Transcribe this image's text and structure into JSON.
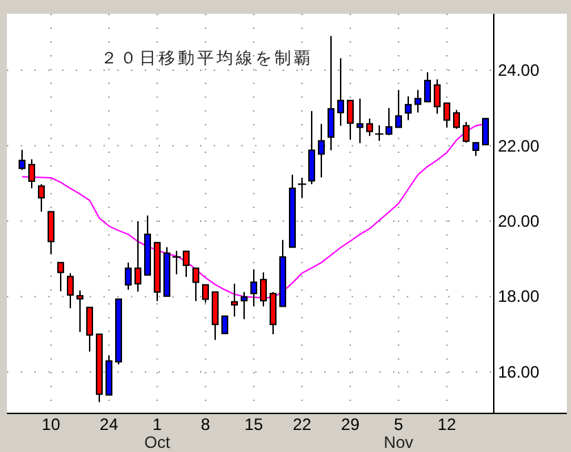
{
  "chart_data": {
    "type": "candlestick",
    "annotations": [
      "２０日移動平均線を制覇",
      "Oct",
      "Nov"
    ],
    "categories": [
      null,
      null,
      null,
      "10",
      null,
      null,
      null,
      null,
      null,
      "24",
      null,
      null,
      null,
      null,
      "1",
      null,
      null,
      null,
      null,
      "8",
      null,
      null,
      null,
      null,
      "15",
      null,
      null,
      null,
      null,
      "22",
      null,
      null,
      null,
      null,
      "29",
      null,
      null,
      null,
      null,
      "5",
      null,
      null,
      null,
      null,
      "12",
      null,
      null,
      null,
      null
    ],
    "ohlc": [
      [
        21.4,
        21.89,
        21.36,
        21.61
      ],
      [
        21.5,
        21.64,
        20.87,
        21.06
      ],
      [
        20.93,
        20.98,
        20.25,
        20.62
      ],
      [
        20.25,
        20.25,
        19.12,
        19.46
      ],
      [
        18.9,
        18.9,
        18.14,
        18.64
      ],
      [
        18.53,
        18.62,
        17.69,
        18.04
      ],
      [
        18.02,
        18.16,
        17.06,
        17.94
      ],
      [
        17.71,
        17.71,
        16.54,
        16.98
      ],
      [
        17.0,
        17.0,
        15.2,
        15.41
      ],
      [
        15.39,
        16.44,
        15.39,
        16.29
      ],
      [
        16.27,
        17.93,
        16.2,
        17.93
      ],
      [
        18.31,
        18.9,
        18.18,
        18.75
      ],
      [
        18.75,
        20.0,
        18.13,
        18.34
      ],
      [
        18.57,
        20.15,
        18.57,
        19.65
      ],
      [
        19.43,
        19.43,
        17.88,
        18.12
      ],
      [
        18.01,
        19.31,
        18.01,
        19.15
      ],
      [
        19.05,
        19.21,
        18.59,
        19.05
      ],
      [
        19.2,
        19.2,
        18.52,
        18.83
      ],
      [
        18.75,
        18.75,
        17.88,
        18.38
      ],
      [
        18.31,
        18.31,
        17.84,
        17.93
      ],
      [
        18.12,
        18.12,
        16.85,
        17.26
      ],
      [
        17.02,
        17.48,
        17.0,
        17.48
      ],
      [
        17.86,
        18.34,
        17.47,
        17.78
      ],
      [
        17.89,
        18.12,
        17.4,
        17.99
      ],
      [
        18.08,
        18.72,
        17.74,
        18.38
      ],
      [
        18.45,
        18.64,
        17.74,
        17.89
      ],
      [
        18.08,
        18.12,
        17.0,
        17.26
      ],
      [
        17.74,
        19.5,
        17.74,
        19.05
      ],
      [
        19.31,
        21.23,
        19.31,
        20.87
      ],
      [
        20.98,
        21.15,
        20.61,
        20.98
      ],
      [
        21.07,
        22.92,
        20.98,
        21.88
      ],
      [
        21.78,
        22.58,
        21.16,
        22.13
      ],
      [
        22.23,
        24.91,
        21.88,
        22.98
      ],
      [
        22.88,
        24.32,
        22.53,
        23.2
      ],
      [
        23.2,
        23.2,
        22.16,
        22.6
      ],
      [
        22.49,
        23.25,
        22.07,
        22.58
      ],
      [
        22.58,
        22.72,
        22.26,
        22.38
      ],
      [
        22.31,
        22.54,
        22.13,
        22.31
      ],
      [
        22.31,
        23.0,
        22.28,
        22.5
      ],
      [
        22.49,
        23.48,
        22.49,
        22.79
      ],
      [
        22.87,
        23.31,
        22.68,
        23.09
      ],
      [
        23.1,
        23.48,
        22.88,
        23.25
      ],
      [
        23.17,
        23.95,
        23.17,
        23.73
      ],
      [
        23.61,
        23.76,
        22.85,
        23.04
      ],
      [
        23.13,
        23.13,
        22.48,
        22.68
      ],
      [
        22.87,
        22.95,
        22.45,
        22.49
      ],
      [
        22.53,
        22.63,
        22.08,
        22.12
      ],
      [
        21.88,
        22.08,
        21.73,
        22.08
      ],
      [
        22.03,
        22.72,
        22.03,
        22.72
      ]
    ],
    "colors": [
      "#0000ff",
      "#ff0000",
      "#ff0000",
      "#ff0000",
      "#ff0000",
      "#ff0000",
      "#ff0000",
      "#ff0000",
      "#ff0000",
      "#0000ff",
      "#0000ff",
      "#0000ff",
      "#ff0000",
      "#0000ff",
      "#ff0000",
      "#0000ff",
      "#000000",
      "#ff0000",
      "#ff0000",
      "#ff0000",
      "#ff0000",
      "#0000ff",
      "#ff0000",
      "#0000ff",
      "#0000ff",
      "#ff0000",
      "#ff0000",
      "#0000ff",
      "#0000ff",
      "#000000",
      "#0000ff",
      "#0000ff",
      "#0000ff",
      "#0000ff",
      "#ff0000",
      "#0000ff",
      "#ff0000",
      "#000000",
      "#0000ff",
      "#0000ff",
      "#0000ff",
      "#0000ff",
      "#0000ff",
      "#ff0000",
      "#ff0000",
      "#ff0000",
      "#ff0000",
      "#0000ff",
      "#0000ff"
    ],
    "series": [
      {
        "type": "line",
        "color": "#ff00ff",
        "values": [
          21.18,
          21.17,
          21.16,
          21.15,
          21.03,
          20.87,
          20.72,
          20.55,
          20.08,
          19.87,
          19.75,
          19.65,
          19.46,
          19.33,
          19.23,
          19.14,
          19.07,
          18.93,
          18.72,
          18.5,
          18.32,
          18.18,
          18.06,
          18.0,
          17.98,
          17.97,
          17.97,
          18.13,
          18.36,
          18.62,
          18.76,
          18.9,
          19.1,
          19.3,
          19.47,
          19.65,
          19.8,
          20.02,
          20.24,
          20.47,
          20.85,
          21.23,
          21.45,
          21.62,
          21.82,
          22.15,
          22.38,
          22.53,
          22.58
        ]
      }
    ],
    "ylim": [
      14.9,
      25.5
    ],
    "yticks": [
      {
        "value": 16,
        "label": "16.00"
      },
      {
        "value": 18,
        "label": "18.00"
      },
      {
        "value": 20,
        "label": "20.00"
      },
      {
        "value": 22,
        "label": "22.00"
      },
      {
        "value": 24,
        "label": "24.00"
      }
    ],
    "grid": true
  }
}
